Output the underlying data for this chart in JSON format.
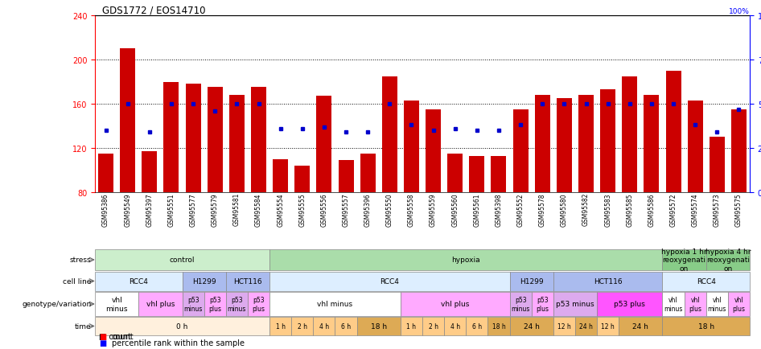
{
  "title": "GDS1772 / EOS14710",
  "samples": [
    "GSM95386",
    "GSM95549",
    "GSM95397",
    "GSM95551",
    "GSM95577",
    "GSM95579",
    "GSM95581",
    "GSM95584",
    "GSM95554",
    "GSM95555",
    "GSM95556",
    "GSM95557",
    "GSM95396",
    "GSM95550",
    "GSM95558",
    "GSM95559",
    "GSM95560",
    "GSM95561",
    "GSM95398",
    "GSM95552",
    "GSM95578",
    "GSM95580",
    "GSM95582",
    "GSM95583",
    "GSM95585",
    "GSM95586",
    "GSM95572",
    "GSM95574",
    "GSM95573",
    "GSM95575"
  ],
  "counts": [
    115,
    210,
    117,
    180,
    178,
    175,
    168,
    175,
    110,
    104,
    167,
    109,
    115,
    185,
    163,
    155,
    115,
    113,
    113,
    155,
    168,
    165,
    168,
    173,
    185,
    168,
    190,
    163,
    130,
    155
  ],
  "percentile_ranks_pct": [
    35,
    50,
    34,
    50,
    50,
    46,
    50,
    50,
    36,
    36,
    37,
    34,
    34,
    50,
    38,
    35,
    36,
    35,
    35,
    38,
    50,
    50,
    50,
    50,
    50,
    50,
    50,
    38,
    34,
    47
  ],
  "ylim_left": [
    80,
    240
  ],
  "ylim_right": [
    0,
    100
  ],
  "yticks_left": [
    80,
    120,
    160,
    200,
    240
  ],
  "yticks_right": [
    0,
    25,
    50,
    75,
    100
  ],
  "bar_color": "#cc0000",
  "dot_color": "#0000cc",
  "bar_bottom": 80,
  "stress_row": {
    "label": "stress",
    "segments": [
      {
        "text": "control",
        "start": 0,
        "end": 8,
        "color": "#cceecc"
      },
      {
        "text": "hypoxia",
        "start": 8,
        "end": 26,
        "color": "#aaddaa"
      },
      {
        "text": "hypoxia 1 hr\nreoxygenati\non",
        "start": 26,
        "end": 28,
        "color": "#88cc88"
      },
      {
        "text": "hypoxia 4 hr\nreoxygenati\non",
        "start": 28,
        "end": 30,
        "color": "#88cc88"
      }
    ]
  },
  "cellline_row": {
    "label": "cell line",
    "segments": [
      {
        "text": "RCC4",
        "start": 0,
        "end": 4,
        "color": "#ddeeff"
      },
      {
        "text": "H1299",
        "start": 4,
        "end": 6,
        "color": "#aabbee"
      },
      {
        "text": "HCT116",
        "start": 6,
        "end": 8,
        "color": "#aabbee"
      },
      {
        "text": "RCC4",
        "start": 8,
        "end": 19,
        "color": "#ddeeff"
      },
      {
        "text": "H1299",
        "start": 19,
        "end": 21,
        "color": "#aabbee"
      },
      {
        "text": "HCT116",
        "start": 21,
        "end": 26,
        "color": "#aabbee"
      },
      {
        "text": "RCC4",
        "start": 26,
        "end": 30,
        "color": "#ddeeff"
      }
    ]
  },
  "genotype_row": {
    "label": "genotype/variation",
    "segments": [
      {
        "text": "vhl\nminus",
        "start": 0,
        "end": 2,
        "color": "#ffffff"
      },
      {
        "text": "vhl plus",
        "start": 2,
        "end": 4,
        "color": "#ffaaff"
      },
      {
        "text": "p53\nminus",
        "start": 4,
        "end": 5,
        "color": "#ddaaee"
      },
      {
        "text": "p53\nplus",
        "start": 5,
        "end": 6,
        "color": "#ffaaff"
      },
      {
        "text": "p53\nminus",
        "start": 6,
        "end": 7,
        "color": "#ddaaee"
      },
      {
        "text": "p53\nplus",
        "start": 7,
        "end": 8,
        "color": "#ffaaff"
      },
      {
        "text": "vhl minus",
        "start": 8,
        "end": 14,
        "color": "#ffffff"
      },
      {
        "text": "vhl plus",
        "start": 14,
        "end": 19,
        "color": "#ffaaff"
      },
      {
        "text": "p53\nminus",
        "start": 19,
        "end": 20,
        "color": "#ddaaee"
      },
      {
        "text": "p53\nplus",
        "start": 20,
        "end": 21,
        "color": "#ffaaff"
      },
      {
        "text": "p53 minus",
        "start": 21,
        "end": 23,
        "color": "#ddaaee"
      },
      {
        "text": "p53 plus",
        "start": 23,
        "end": 26,
        "color": "#ff55ff"
      },
      {
        "text": "vhl\nminus",
        "start": 26,
        "end": 27,
        "color": "#ffffff"
      },
      {
        "text": "vhl\nplus",
        "start": 27,
        "end": 28,
        "color": "#ffaaff"
      },
      {
        "text": "vhl\nminus",
        "start": 28,
        "end": 29,
        "color": "#ffffff"
      },
      {
        "text": "vhl\nplus",
        "start": 29,
        "end": 30,
        "color": "#ffaaff"
      }
    ]
  },
  "time_row": {
    "label": "time",
    "segments": [
      {
        "text": "0 h",
        "start": 0,
        "end": 8,
        "color": "#fff0dd"
      },
      {
        "text": "1 h",
        "start": 8,
        "end": 9,
        "color": "#ffcc88"
      },
      {
        "text": "2 h",
        "start": 9,
        "end": 10,
        "color": "#ffcc88"
      },
      {
        "text": "4 h",
        "start": 10,
        "end": 11,
        "color": "#ffcc88"
      },
      {
        "text": "6 h",
        "start": 11,
        "end": 12,
        "color": "#ffcc88"
      },
      {
        "text": "18 h",
        "start": 12,
        "end": 14,
        "color": "#ddaa55"
      },
      {
        "text": "1 h",
        "start": 14,
        "end": 15,
        "color": "#ffcc88"
      },
      {
        "text": "2 h",
        "start": 15,
        "end": 16,
        "color": "#ffcc88"
      },
      {
        "text": "4 h",
        "start": 16,
        "end": 17,
        "color": "#ffcc88"
      },
      {
        "text": "6 h",
        "start": 17,
        "end": 18,
        "color": "#ffcc88"
      },
      {
        "text": "18 h",
        "start": 18,
        "end": 19,
        "color": "#ddaa55"
      },
      {
        "text": "24 h",
        "start": 19,
        "end": 21,
        "color": "#ddaa55"
      },
      {
        "text": "12 h",
        "start": 21,
        "end": 22,
        "color": "#ffcc88"
      },
      {
        "text": "24 h",
        "start": 22,
        "end": 23,
        "color": "#ddaa55"
      },
      {
        "text": "12 h",
        "start": 23,
        "end": 24,
        "color": "#ffcc88"
      },
      {
        "text": "24 h",
        "start": 24,
        "end": 26,
        "color": "#ddaa55"
      },
      {
        "text": "18 h",
        "start": 26,
        "end": 30,
        "color": "#ddaa55"
      }
    ]
  }
}
